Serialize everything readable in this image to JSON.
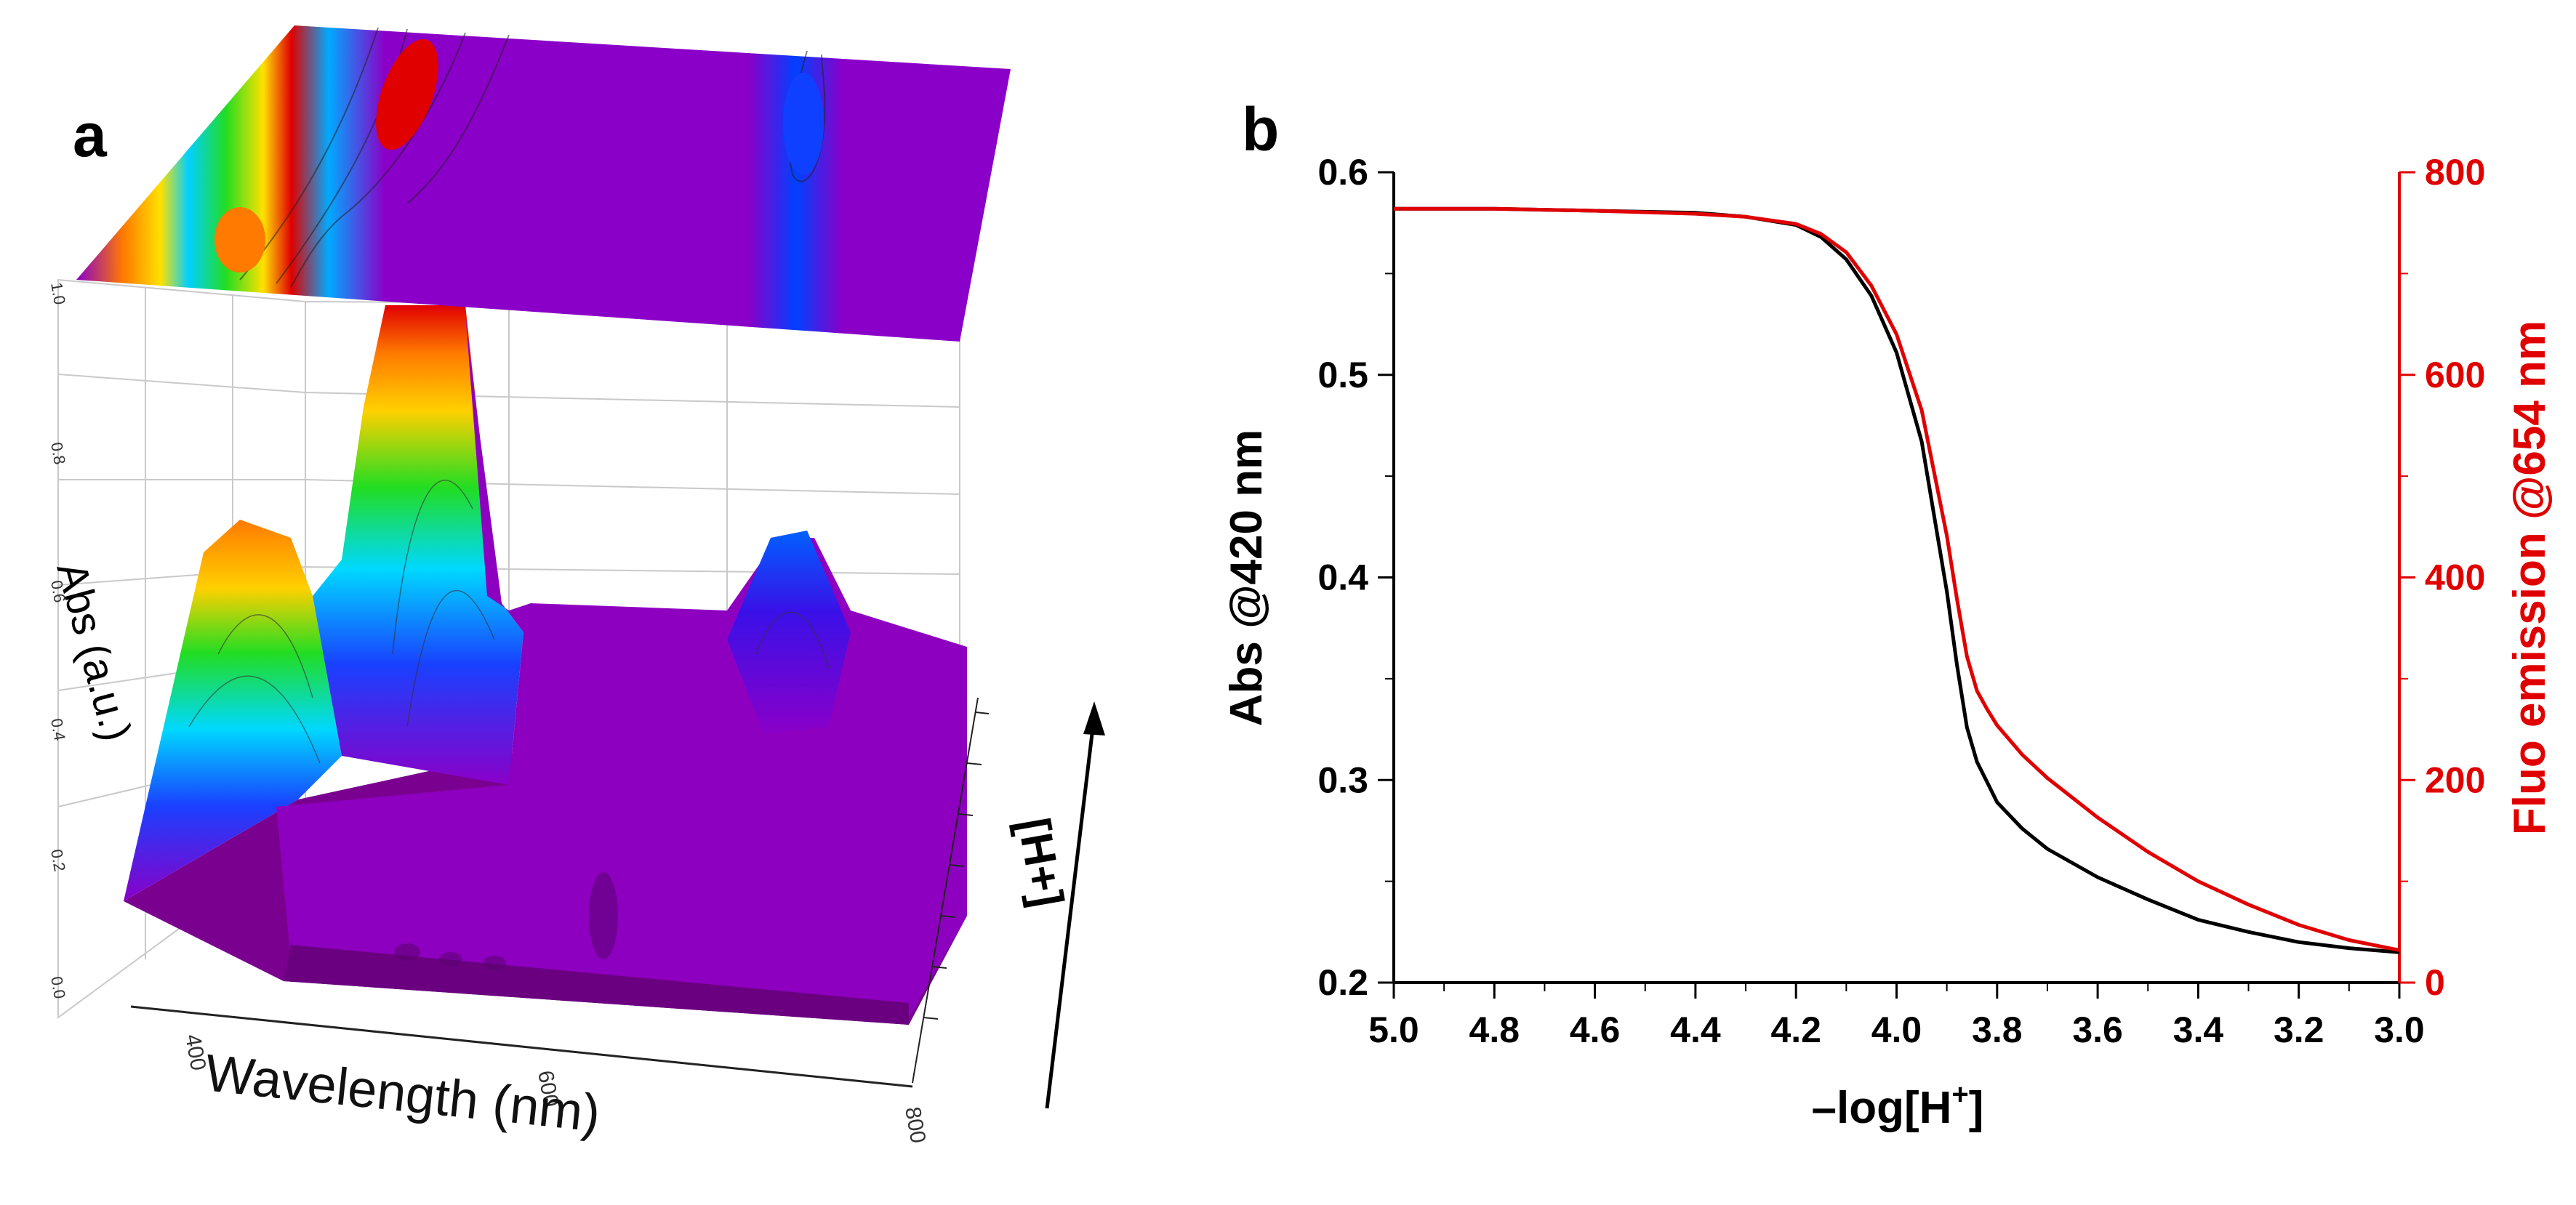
{
  "panel_a": {
    "letter": "a",
    "xlabel": "Wavelength (nm)",
    "ylabel": "Abs (a.u.)",
    "zlabel": "[H+]",
    "x_ticks": [
      "400",
      "600",
      "800"
    ],
    "y_ticks": [
      "0.0",
      "0.2",
      "0.4",
      "0.6",
      "0.8",
      "1.0"
    ],
    "colors": {
      "low": "#8a00b8",
      "mid1": "#0030ff",
      "mid2": "#00e0ff",
      "mid3": "#22dd22",
      "mid4": "#ffd000",
      "high": "#e00000"
    }
  },
  "panel_b": {
    "letter": "b",
    "ylabel_left": "Abs @420 nm",
    "ylabel_right": "Fluo emission @654 nm",
    "xlabel_prefix": "–log[H",
    "xlabel_sup": "+",
    "xlabel_suffix": "]",
    "left_color": "#000000",
    "right_color": "#e00000"
  },
  "chart_data": [
    {
      "type": "surface",
      "title": "",
      "xlabel": "Wavelength (nm)",
      "ylabel": "Abs (a.u.)",
      "zlabel": "[H+]",
      "xlim": [
        350,
        800
      ],
      "ylim": [
        0.0,
        1.0
      ],
      "notes": "3D absorption spectra surface with top contour projection; peaks near 420 nm and 460 nm, secondary band near 650 nm."
    },
    {
      "type": "line",
      "xlabel": "–log[H+]",
      "ylabel": "Abs @420 nm",
      "y2label": "Fluo emission @654 nm",
      "xlim": [
        5.0,
        3.0
      ],
      "ylim": [
        0.2,
        0.6
      ],
      "y2lim": [
        0,
        800
      ],
      "x_ticks": [
        "5.0",
        "4.8",
        "4.6",
        "4.4",
        "4.2",
        "4.0",
        "3.8",
        "3.6",
        "3.4",
        "3.2",
        "3.0"
      ],
      "y_ticks": [
        "0.2",
        "0.3",
        "0.4",
        "0.5",
        "0.6"
      ],
      "y2_ticks": [
        "0",
        "200",
        "400",
        "600",
        "800"
      ],
      "series": [
        {
          "name": "Abs @420 nm",
          "axis": "left",
          "color": "#000000",
          "x": [
            5.0,
            4.8,
            4.6,
            4.4,
            4.3,
            4.2,
            4.15,
            4.1,
            4.05,
            4.0,
            3.95,
            3.9,
            3.88,
            3.86,
            3.84,
            3.82,
            3.8,
            3.75,
            3.7,
            3.6,
            3.5,
            3.4,
            3.3,
            3.2,
            3.1,
            3.0
          ],
          "values": [
            0.582,
            0.582,
            0.581,
            0.58,
            0.578,
            0.574,
            0.568,
            0.557,
            0.539,
            0.511,
            0.467,
            0.393,
            0.357,
            0.326,
            0.309,
            0.299,
            0.289,
            0.276,
            0.266,
            0.252,
            0.241,
            0.231,
            0.225,
            0.22,
            0.217,
            0.215
          ]
        },
        {
          "name": "Fluo emission @654 nm",
          "axis": "right",
          "color": "#e00000",
          "x": [
            5.0,
            4.8,
            4.6,
            4.4,
            4.3,
            4.2,
            4.15,
            4.1,
            4.05,
            4.0,
            3.95,
            3.9,
            3.88,
            3.86,
            3.84,
            3.82,
            3.8,
            3.75,
            3.7,
            3.6,
            3.5,
            3.4,
            3.3,
            3.2,
            3.1,
            3.0
          ],
          "values": [
            764,
            764,
            762,
            759,
            756,
            749,
            739,
            721,
            688,
            640,
            565,
            441,
            379,
            322,
            288,
            270,
            254,
            225,
            202,
            163,
            129,
            100,
            77,
            57,
            42,
            32
          ]
        }
      ]
    }
  ]
}
